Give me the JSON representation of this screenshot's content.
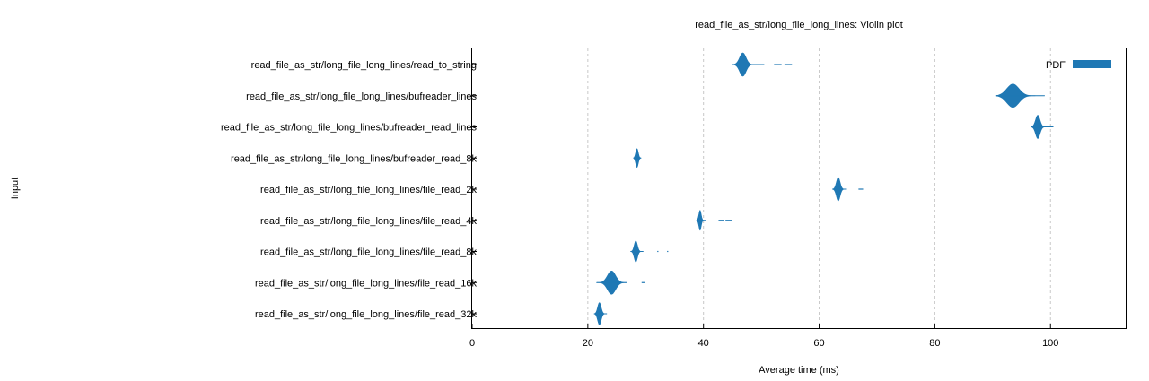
{
  "chart_data": {
    "type": "violin",
    "title": "read_file_as_str/long_file_long_lines: Violin plot",
    "xlabel": "Average time (ms)",
    "ylabel": "Input",
    "xlim": [
      0,
      113
    ],
    "xticks": [
      0,
      20,
      40,
      60,
      80,
      100
    ],
    "grid": "vertical dashed",
    "legend": {
      "label": "PDF",
      "position": "top-right",
      "color": "#1f78b4"
    },
    "color": "#1f78b4",
    "categories": [
      "read_file_as_str/long_file_long_lines/read_to_string",
      "read_file_as_str/long_file_long_lines/bufreader_lines",
      "read_file_as_str/long_file_long_lines/bufreader_read_lines",
      "read_file_as_str/long_file_long_lines/bufreader_read_8k",
      "read_file_as_str/long_file_long_lines/file_read_2k",
      "read_file_as_str/long_file_long_lines/file_read_4k",
      "read_file_as_str/long_file_long_lines/file_read_8k",
      "read_file_as_str/long_file_long_lines/file_read_16k",
      "read_file_as_str/long_file_long_lines/file_read_32k"
    ],
    "violins": [
      {
        "center": 46.8,
        "min": 45.0,
        "max": 50.5,
        "sigma": 0.55,
        "height": 1.0,
        "outliers": [
          [
            52.2,
            53.5
          ],
          [
            54.0,
            55.3
          ]
        ]
      },
      {
        "center": 93.5,
        "min": 90.5,
        "max": 99.0,
        "sigma": 1.05,
        "height": 1.0,
        "outliers": []
      },
      {
        "center": 97.8,
        "min": 96.7,
        "max": 100.5,
        "sigma": 0.38,
        "height": 1.0,
        "outliers": []
      },
      {
        "center": 28.5,
        "min": 27.9,
        "max": 29.2,
        "sigma": 0.22,
        "height": 0.8,
        "outliers": []
      },
      {
        "center": 63.3,
        "min": 62.3,
        "max": 64.8,
        "sigma": 0.32,
        "height": 1.0,
        "outliers": [
          [
            66.8,
            67.6
          ]
        ]
      },
      {
        "center": 39.4,
        "min": 38.8,
        "max": 40.4,
        "sigma": 0.2,
        "height": 0.85,
        "outliers": [
          [
            42.6,
            43.5
          ],
          [
            43.8,
            44.9
          ]
        ]
      },
      {
        "center": 28.3,
        "min": 27.4,
        "max": 29.6,
        "sigma": 0.28,
        "height": 0.9,
        "outliers": [
          [
            32.0,
            32.2
          ],
          [
            33.7,
            33.9
          ]
        ]
      },
      {
        "center": 24.1,
        "min": 21.5,
        "max": 26.8,
        "sigma": 0.7,
        "height": 1.0,
        "outliers": [
          [
            29.3,
            29.8
          ]
        ]
      },
      {
        "center": 22.0,
        "min": 21.1,
        "max": 23.3,
        "sigma": 0.3,
        "height": 0.95,
        "outliers": []
      }
    ]
  }
}
